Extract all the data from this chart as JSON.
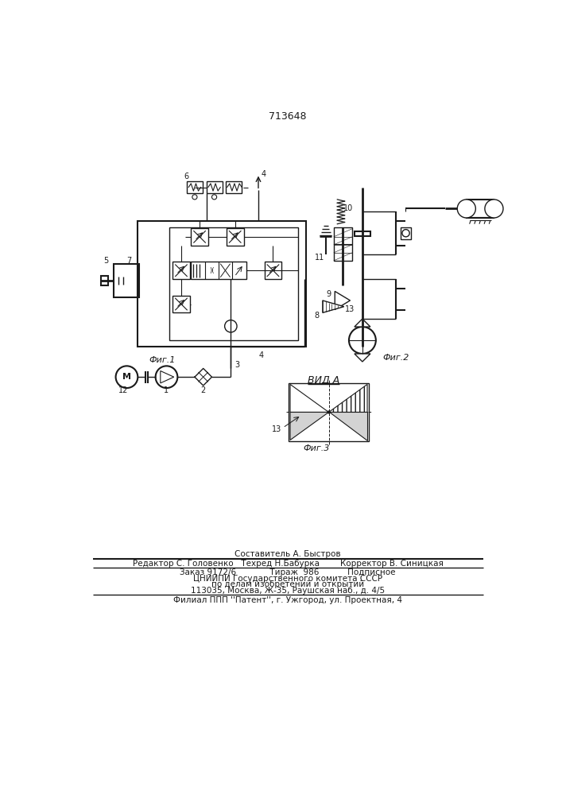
{
  "patent_number": "713648",
  "bg_color": "#ffffff",
  "line_color": "#1a1a1a",
  "fig_width": 7.07,
  "fig_height": 10.0,
  "footer_lines": [
    "Составитель А. Быстров",
    "Редактор С. Головенко   Техред Н.Бабурка        Корректор В. Синицкая",
    "Заказ 9172/6             Тираж  986           Подписное",
    "ЦНИИПИ Государственного комитета СССР",
    "по делам изобретений и открытий",
    "113035, Москва, Ж-35, Раушская наб., д. 4/5",
    "Филиал ППП ''Патент'', г. Ужгород, ул. Проектная, 4"
  ],
  "fig1_label": "Фиг.1",
  "fig2_label": "Фиг.2",
  "fig3_label": "Фиг.3",
  "vida_label": "вид А"
}
